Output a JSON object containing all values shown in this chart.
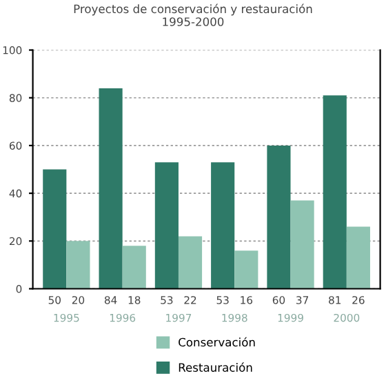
{
  "chart_data": {
    "type": "bar",
    "title": "Proyectos de conservación y restauración",
    "subtitle": "1995-2000",
    "categories": [
      "1995",
      "1996",
      "1997",
      "1998",
      "1999",
      "2000"
    ],
    "series": [
      {
        "name": "Restauración",
        "color": "#2e7a68",
        "values": [
          50,
          84,
          53,
          53,
          60,
          81
        ]
      },
      {
        "name": "Conservación",
        "color": "#8fc4b2",
        "values": [
          20,
          18,
          22,
          16,
          37,
          26
        ]
      }
    ],
    "ylim": [
      0,
      100
    ],
    "yticks": [
      0,
      20,
      40,
      60,
      80,
      100
    ],
    "grid": "y",
    "legend": "bottom",
    "data_labels": true
  }
}
